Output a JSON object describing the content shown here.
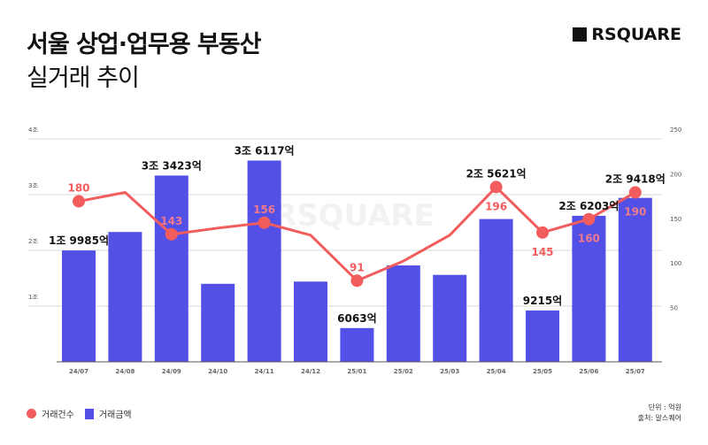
{
  "header": {
    "title": "서울 상업·업무용 부동산",
    "subtitle": "실거래 추이",
    "logo": "RSQUARE"
  },
  "legend": {
    "line": "거래건수",
    "bar": "거래금액"
  },
  "notes": {
    "unit": "단위 : 억원",
    "source": "출처: 알스퀘어"
  },
  "colors": {
    "bar": "#5350e8",
    "line": "#f25c5c"
  },
  "chart_data": {
    "type": "bar+line",
    "categories": [
      "24/07",
      "24/08",
      "24/09",
      "24/10",
      "24/11",
      "24/12",
      "25/01",
      "25/02",
      "25/03",
      "25/04",
      "25/05",
      "25/06",
      "25/07"
    ],
    "series": [
      {
        "name": "거래금액",
        "type": "bar",
        "axis": "left",
        "values": [
          19985,
          23300,
          33423,
          14000,
          36117,
          14400,
          6063,
          17300,
          15600,
          25621,
          9215,
          26203,
          29418
        ],
        "labels": [
          "1조 9985억",
          "",
          "3조 3423억",
          "",
          "3조 6117억",
          "",
          "6063억",
          "",
          "",
          "2조 5621억",
          "9215억",
          "2조 6203억",
          "2조 9418억"
        ]
      },
      {
        "name": "거래건수",
        "type": "line",
        "axis": "right",
        "values": [
          180,
          190,
          143,
          150,
          156,
          142,
          91,
          113,
          142,
          196,
          145,
          160,
          190
        ],
        "labels": [
          "180",
          "",
          "143",
          "",
          "156",
          "",
          "91",
          "",
          "",
          "196",
          "145",
          "160",
          "190"
        ]
      }
    ],
    "y_left": {
      "ticks": [
        "",
        "1조",
        "2조",
        "3조",
        "4조"
      ],
      "range": [
        0,
        40000
      ]
    },
    "y_right": {
      "ticks": [
        "",
        "50",
        "100",
        "150",
        "200",
        "250"
      ],
      "range": [
        0,
        250
      ]
    },
    "watermark": "RSQUARE",
    "grid": true
  }
}
